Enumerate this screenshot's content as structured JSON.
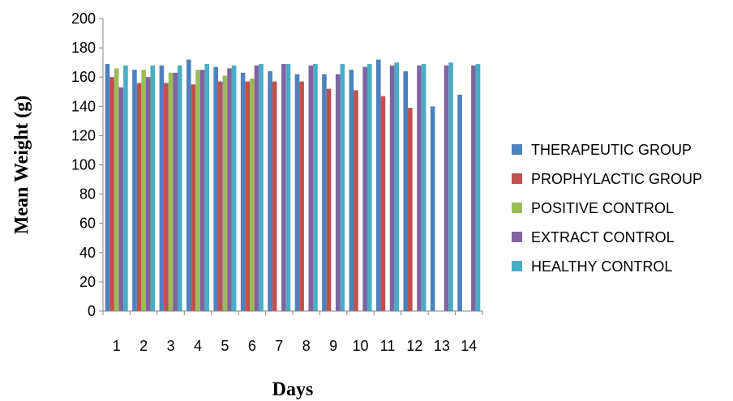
{
  "chart_data": {
    "type": "bar",
    "title": "",
    "xlabel": "Days",
    "ylabel": "Mean Weight (g)",
    "ylim": [
      0,
      200
    ],
    "yticks": [
      0,
      20,
      40,
      60,
      80,
      100,
      120,
      140,
      160,
      180,
      200
    ],
    "categories": [
      "1",
      "2",
      "3",
      "4",
      "5",
      "6",
      "7",
      "8",
      "9",
      "10",
      "11",
      "12",
      "13",
      "14"
    ],
    "legend_position": "right",
    "grid": false,
    "series": [
      {
        "name": "THERAPEUTIC GROUP",
        "color": "#4F81BD",
        "values": [
          169,
          165,
          168,
          172,
          167,
          163,
          164,
          162,
          162,
          165,
          172,
          164,
          140,
          148
        ]
      },
      {
        "name": "PROPHYLACTIC GROUP",
        "color": "#C0504D",
        "values": [
          160,
          156,
          156,
          155,
          157,
          157,
          157,
          157,
          152,
          151,
          147,
          139,
          null,
          null
        ]
      },
      {
        "name": "POSITIVE CONTROL",
        "color": "#9BBB59",
        "values": [
          166,
          165,
          163,
          165,
          161,
          159,
          null,
          null,
          null,
          null,
          null,
          null,
          null,
          null
        ]
      },
      {
        "name": "EXTRACT CONTROL",
        "color": "#8064A2",
        "values": [
          153,
          160,
          163,
          165,
          166,
          168,
          169,
          168,
          162,
          167,
          168,
          168,
          168,
          168
        ]
      },
      {
        "name": "HEALTHY CONTROL",
        "color": "#4BACC6",
        "values": [
          168,
          168,
          168,
          169,
          168,
          169,
          169,
          169,
          169,
          169,
          170,
          169,
          170,
          169
        ]
      }
    ]
  }
}
